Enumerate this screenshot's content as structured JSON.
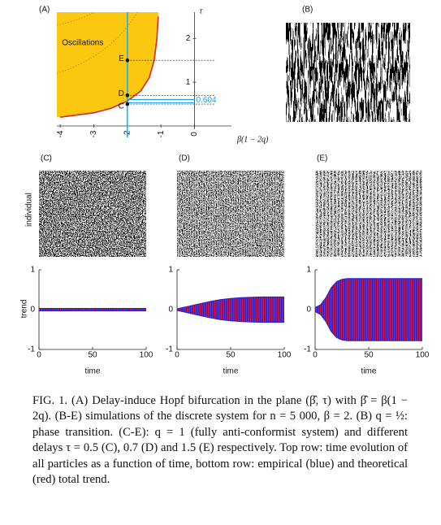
{
  "figure": {
    "panel_a": {
      "type": "line",
      "label": "(A)",
      "xlabel": "β(1 − 2q)",
      "ylabel": "τ",
      "xlim": [
        -4.1,
        1.1
      ],
      "ylim": [
        0,
        2.6
      ],
      "xticks": [
        -4,
        -3,
        -2,
        -1,
        0
      ],
      "yticks": [
        1,
        2
      ],
      "region_label": "Oscillations",
      "region_color": "#fcc80f",
      "boundary_color": "#d8262b",
      "line_color": "#1ea0e0",
      "boundary": {
        "x": [
          -4,
          -3,
          -2.5,
          -2,
          -1.6,
          -1.35,
          -1.2,
          -1.12,
          -1.08
        ],
        "y": [
          0.2,
          0.3,
          0.4,
          0.57,
          0.8,
          1.1,
          1.5,
          2.0,
          2.5
        ]
      },
      "beta_hat": -2,
      "critical_tau": 0.604,
      "points": [
        {
          "label": "E",
          "y": 1.5
        },
        {
          "label": "D",
          "y": 0.7
        },
        {
          "label": "C",
          "y": 0.5
        }
      ]
    },
    "panel_b": {
      "label": "(B)"
    },
    "simulations": {
      "top_ylabel": "individual",
      "bottom_ylabel": "trend",
      "xlabel": "time",
      "xlim": [
        0,
        100
      ],
      "ylim": [
        -1,
        1
      ],
      "xticks": [
        0,
        50,
        100
      ],
      "yticks": [
        -1,
        0,
        1
      ],
      "colors": [
        "#1c22d6",
        "#d41848"
      ],
      "panels": [
        {
          "label": "(C)",
          "x": [
            0,
            25,
            50,
            75,
            100
          ],
          "upper": [
            0.03,
            0.03,
            0.03,
            0.03,
            0.03
          ],
          "lower": [
            -0.03,
            -0.03,
            -0.03,
            -0.03,
            -0.03
          ]
        },
        {
          "label": "(D)",
          "x": [
            0,
            10,
            20,
            30,
            40,
            50,
            60,
            70,
            80,
            90,
            100
          ],
          "upper": [
            0.02,
            0.08,
            0.14,
            0.2,
            0.25,
            0.28,
            0.3,
            0.31,
            0.32,
            0.32,
            0.32
          ],
          "lower": [
            -0.02,
            -0.08,
            -0.14,
            -0.2,
            -0.25,
            -0.28,
            -0.3,
            -0.31,
            -0.32,
            -0.32,
            -0.32
          ]
        },
        {
          "label": "(E)",
          "x": [
            0,
            5,
            10,
            15,
            20,
            25,
            30,
            40,
            60,
            80,
            100
          ],
          "upper": [
            0.05,
            0.12,
            0.3,
            0.55,
            0.7,
            0.76,
            0.78,
            0.78,
            0.78,
            0.78,
            0.78
          ],
          "lower": [
            -0.05,
            -0.12,
            -0.3,
            -0.55,
            -0.7,
            -0.76,
            -0.78,
            -0.78,
            -0.78,
            -0.78,
            -0.78
          ]
        }
      ]
    },
    "caption": "FIG. 1. (A) Delay-induce Hopf bifurcation in the plane (β̂, τ) with β̂ = β(1 − 2q). (B-E) simulations of the discrete system for n = 5 000, β = 2. (B) q = ½: phase transition. (C-E): q = 1 (fully anti-conformist system) and different delays τ = 0.5 (C), 0.7 (D) and 1.5 (E) respectively. Top row: time evolution of all particles as a function of time, bottom row: empirical (blue) and theoretical (red) total trend."
  }
}
